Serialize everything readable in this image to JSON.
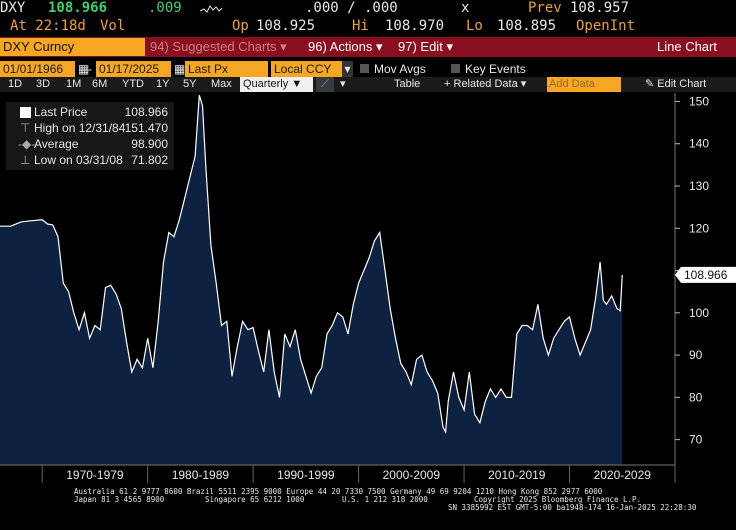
{
  "quote": {
    "ticker": "DXY",
    "price": "108.966",
    "change": ".009",
    "bidask": ".000 / .000",
    "x": "x",
    "prev_label": "Prev",
    "prev": "108.957",
    "time": "At 22:18d",
    "vol_label": "Vol",
    "op_label": "Op",
    "op": "108.925",
    "hi_label": "Hi",
    "hi": "108.970",
    "lo_label": "Lo",
    "lo": "108.895",
    "openint_label": "OpenInt"
  },
  "toolbar": {
    "security": "DXY Curncy",
    "suggested": "94) Suggested Charts",
    "actions": "96) Actions",
    "edit": "97) Edit",
    "chart_type": "Line Chart"
  },
  "controls": {
    "start_date": "01/01/1966",
    "end_date": "01/17/2025",
    "field": "Last Px",
    "currency": "Local CCY",
    "mov_avgs": "Mov Avgs",
    "key_events": "Key Events"
  },
  "periods": {
    "items": [
      "1D",
      "3D",
      "1M",
      "6M",
      "YTD",
      "1Y",
      "5Y",
      "Max"
    ],
    "frequency": "Quarterly",
    "table": "Table",
    "related": "Related Data",
    "add_data": "Add Data",
    "edit_chart": "Edit Chart"
  },
  "legend": {
    "last_label": "Last Price",
    "last_value": "108.966",
    "high_label": "High on 12/31/84",
    "high_value": "151.470",
    "avg_label": "Average",
    "avg_value": "98.900",
    "low_label": "Low on 03/31/08",
    "low_value": "71.802"
  },
  "footer": {
    "line1": "Australia 61 2 9777 8600 Brazil 5511 2395 9000 Europe 44 20 7330 7500 Germany 49 69 9204 1210 Hong Kong 852 2977 6000",
    "line2a": "Japan 81 3 4565 8900",
    "line2b": "Singapore 65 6212 1000",
    "line2c": "U.S. 1 212 318 2000",
    "line2d": "Copyright 2025 Bloomberg Finance L.P.",
    "line3": "SN 3385992 EST  GMT-5:00 ba1948-174 16-Jan-2025 22:28:30"
  },
  "colors": {
    "orange": "#f5a623",
    "red_bar": "#8a0f1f",
    "fill": "#0d2140",
    "line": "#ffffff"
  },
  "chart_data": {
    "type": "area",
    "series": [
      {
        "name": "Last Price",
        "points": [
          [
            1967.0,
            120.5
          ],
          [
            1968.0,
            121.5
          ],
          [
            1969.0,
            121.8
          ],
          [
            1970.0,
            122.0
          ],
          [
            1970.5,
            121.0
          ],
          [
            1971.0,
            120.8
          ],
          [
            1971.5,
            118.0
          ],
          [
            1972.0,
            107.0
          ],
          [
            1972.5,
            105.0
          ],
          [
            1973.0,
            100.0
          ],
          [
            1973.5,
            96.0
          ],
          [
            1974.0,
            100.0
          ],
          [
            1974.5,
            94.0
          ],
          [
            1975.0,
            97.0
          ],
          [
            1975.5,
            96.0
          ],
          [
            1976.0,
            106.0
          ],
          [
            1976.5,
            106.5
          ],
          [
            1977.0,
            104.5
          ],
          [
            1977.5,
            101.0
          ],
          [
            1978.0,
            93.0
          ],
          [
            1978.5,
            86.0
          ],
          [
            1979.0,
            89.0
          ],
          [
            1979.5,
            87.0
          ],
          [
            1980.0,
            94.0
          ],
          [
            1980.5,
            87.0
          ],
          [
            1981.0,
            98.0
          ],
          [
            1981.5,
            112.0
          ],
          [
            1982.0,
            119.0
          ],
          [
            1982.5,
            118.0
          ],
          [
            1983.0,
            122.0
          ],
          [
            1983.5,
            127.0
          ],
          [
            1984.0,
            132.0
          ],
          [
            1984.5,
            137.0
          ],
          [
            1984.9,
            151.47
          ],
          [
            1985.2,
            149.0
          ],
          [
            1985.5,
            135.0
          ],
          [
            1986.0,
            116.0
          ],
          [
            1986.5,
            107.0
          ],
          [
            1987.0,
            97.0
          ],
          [
            1987.5,
            98.0
          ],
          [
            1988.0,
            85.0
          ],
          [
            1988.5,
            92.0
          ],
          [
            1989.0,
            98.0
          ],
          [
            1989.5,
            96.0
          ],
          [
            1990.0,
            96.5
          ],
          [
            1990.5,
            91.0
          ],
          [
            1991.0,
            86.0
          ],
          [
            1991.5,
            96.0
          ],
          [
            1992.0,
            86.0
          ],
          [
            1992.5,
            80.0
          ],
          [
            1993.0,
            95.0
          ],
          [
            1993.5,
            92.0
          ],
          [
            1994.0,
            96.0
          ],
          [
            1994.5,
            89.0
          ],
          [
            1995.0,
            85.0
          ],
          [
            1995.5,
            81.0
          ],
          [
            1996.0,
            85.0
          ],
          [
            1996.5,
            87.0
          ],
          [
            1997.0,
            95.0
          ],
          [
            1997.5,
            97.0
          ],
          [
            1998.0,
            100.0
          ],
          [
            1998.5,
            99.0
          ],
          [
            1999.0,
            95.0
          ],
          [
            1999.5,
            102.0
          ],
          [
            2000.0,
            107.0
          ],
          [
            2000.5,
            110.0
          ],
          [
            2001.0,
            113.0
          ],
          [
            2001.5,
            117.0
          ],
          [
            2002.0,
            119.0
          ],
          [
            2002.5,
            110.0
          ],
          [
            2003.0,
            101.0
          ],
          [
            2003.5,
            94.0
          ],
          [
            2004.0,
            88.0
          ],
          [
            2004.5,
            86.0
          ],
          [
            2005.0,
            83.0
          ],
          [
            2005.5,
            89.0
          ],
          [
            2006.0,
            90.0
          ],
          [
            2006.5,
            86.0
          ],
          [
            2007.0,
            84.0
          ],
          [
            2007.5,
            81.0
          ],
          [
            2008.0,
            73.0
          ],
          [
            2008.25,
            71.8
          ],
          [
            2008.5,
            79.0
          ],
          [
            2009.0,
            86.0
          ],
          [
            2009.5,
            80.0
          ],
          [
            2010.0,
            77.0
          ],
          [
            2010.5,
            86.0
          ],
          [
            2011.0,
            76.0
          ],
          [
            2011.5,
            74.0
          ],
          [
            2012.0,
            79.0
          ],
          [
            2012.5,
            82.0
          ],
          [
            2013.0,
            80.0
          ],
          [
            2013.5,
            82.0
          ],
          [
            2014.0,
            80.0
          ],
          [
            2014.5,
            80.0
          ],
          [
            2015.0,
            95.0
          ],
          [
            2015.5,
            97.0
          ],
          [
            2016.0,
            97.0
          ],
          [
            2016.5,
            96.0
          ],
          [
            2017.0,
            102.0
          ],
          [
            2017.5,
            94.0
          ],
          [
            2018.0,
            90.0
          ],
          [
            2018.5,
            94.0
          ],
          [
            2019.0,
            96.0
          ],
          [
            2019.5,
            98.0
          ],
          [
            2020.0,
            99.0
          ],
          [
            2020.5,
            94.0
          ],
          [
            2021.0,
            90.0
          ],
          [
            2021.5,
            93.0
          ],
          [
            2022.0,
            96.0
          ],
          [
            2022.5,
            104.0
          ],
          [
            2022.9,
            112.0
          ],
          [
            2023.2,
            103.0
          ],
          [
            2023.5,
            102.0
          ],
          [
            2024.0,
            104.0
          ],
          [
            2024.5,
            101.0
          ],
          [
            2024.8,
            100.5
          ],
          [
            2025.0,
            108.966
          ]
        ]
      }
    ],
    "ylim": [
      64,
      152
    ],
    "yticks": [
      70,
      80,
      90,
      100,
      110,
      120,
      130,
      140,
      150
    ],
    "ytick_labels": [
      "70",
      "80",
      "90",
      "100",
      "",
      "120",
      "130",
      "140",
      "150"
    ],
    "last_label": "108.966",
    "xlim": [
      1966,
      2030
    ],
    "x_groups": [
      {
        "label": "1970-1979",
        "from": 1970,
        "to": 1980
      },
      {
        "label": "1980-1989",
        "from": 1980,
        "to": 1990
      },
      {
        "label": "1990-1999",
        "from": 1990,
        "to": 2000
      },
      {
        "label": "2000-2009",
        "from": 2000,
        "to": 2010
      },
      {
        "label": "2010-2019",
        "from": 2010,
        "to": 2020
      },
      {
        "label": "2020-2029",
        "from": 2020,
        "to": 2030
      }
    ],
    "grid": false,
    "legend_position": "top-left"
  }
}
